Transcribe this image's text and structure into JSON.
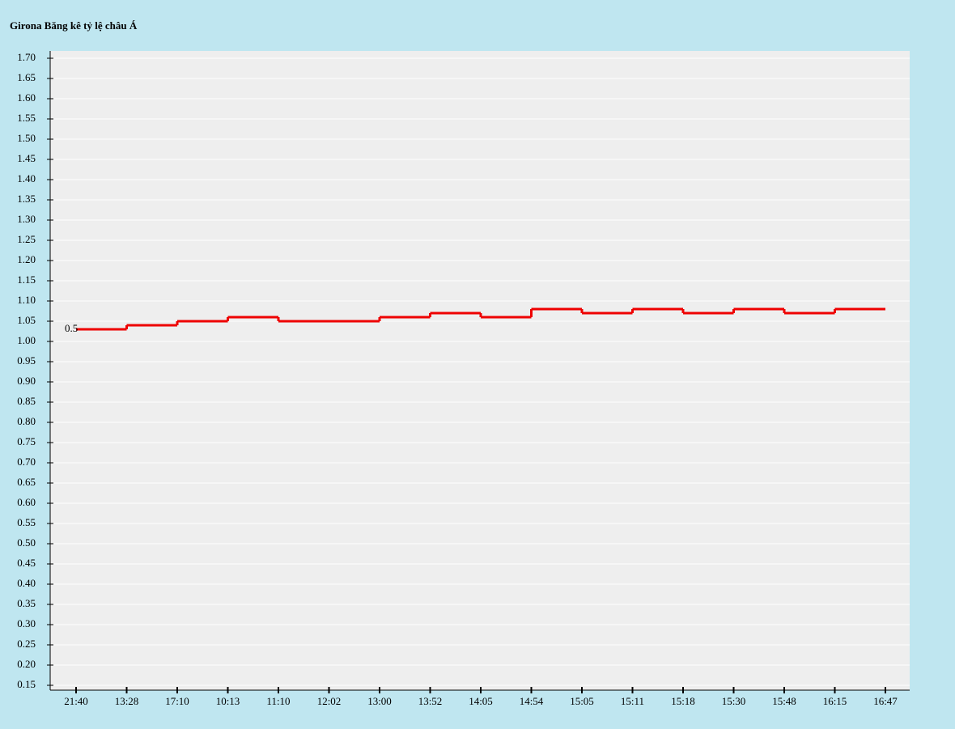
{
  "chart_data": {
    "type": "step",
    "title": "Girona Băng kê tỷ lệ châu Á",
    "annotation": "0.5",
    "categories": [
      "21:40",
      "13:28",
      "17:10",
      "10:13",
      "11:10",
      "12:02",
      "13:00",
      "13:52",
      "14:05",
      "14:54",
      "15:05",
      "15:11",
      "15:18",
      "15:30",
      "15:48",
      "16:15",
      "16:47"
    ],
    "series": [
      {
        "color": "#ee0000",
        "values": [
          1.03,
          1.04,
          1.05,
          1.06,
          1.05,
          1.05,
          1.06,
          1.07,
          1.06,
          1.08,
          1.07,
          1.08,
          1.07,
          1.08,
          1.07,
          1.08,
          1.08
        ]
      }
    ],
    "ylim": [
      0.138,
      1.718
    ],
    "yticks": [
      {
        "value": 0.15,
        "label": "0.15"
      },
      {
        "value": 0.2,
        "label": "0.20"
      },
      {
        "value": 0.25,
        "label": "0.25"
      },
      {
        "value": 0.3,
        "label": "0.30"
      },
      {
        "value": 0.35,
        "label": "0.35"
      },
      {
        "value": 0.4,
        "label": "0.40"
      },
      {
        "value": 0.45,
        "label": "0.45"
      },
      {
        "value": 0.5,
        "label": "0.50"
      },
      {
        "value": 0.55,
        "label": "0.55"
      },
      {
        "value": 0.6,
        "label": "0.60"
      },
      {
        "value": 0.65,
        "label": "0.65"
      },
      {
        "value": 0.7,
        "label": "0.70"
      },
      {
        "value": 0.75,
        "label": "0.75"
      },
      {
        "value": 0.8,
        "label": "0.80"
      },
      {
        "value": 0.85,
        "label": "0.85"
      },
      {
        "value": 0.9,
        "label": "0.90"
      },
      {
        "value": 0.95,
        "label": "0.95"
      },
      {
        "value": 1.0,
        "label": "1.00"
      },
      {
        "value": 1.05,
        "label": "1.05"
      },
      {
        "value": 1.1,
        "label": "1.10"
      },
      {
        "value": 1.15,
        "label": "1.15"
      },
      {
        "value": 1.2,
        "label": "1.20"
      },
      {
        "value": 1.25,
        "label": "1.25"
      },
      {
        "value": 1.3,
        "label": "1.30"
      },
      {
        "value": 1.35,
        "label": "1.35"
      },
      {
        "value": 1.4,
        "label": "1.40"
      },
      {
        "value": 1.45,
        "label": "1.45"
      },
      {
        "value": 1.5,
        "label": "1.50"
      },
      {
        "value": 1.55,
        "label": "1.55"
      },
      {
        "value": 1.6,
        "label": "1.60"
      },
      {
        "value": 1.65,
        "label": "1.65"
      },
      {
        "value": 1.7,
        "label": "1.70"
      }
    ],
    "grid": true
  }
}
